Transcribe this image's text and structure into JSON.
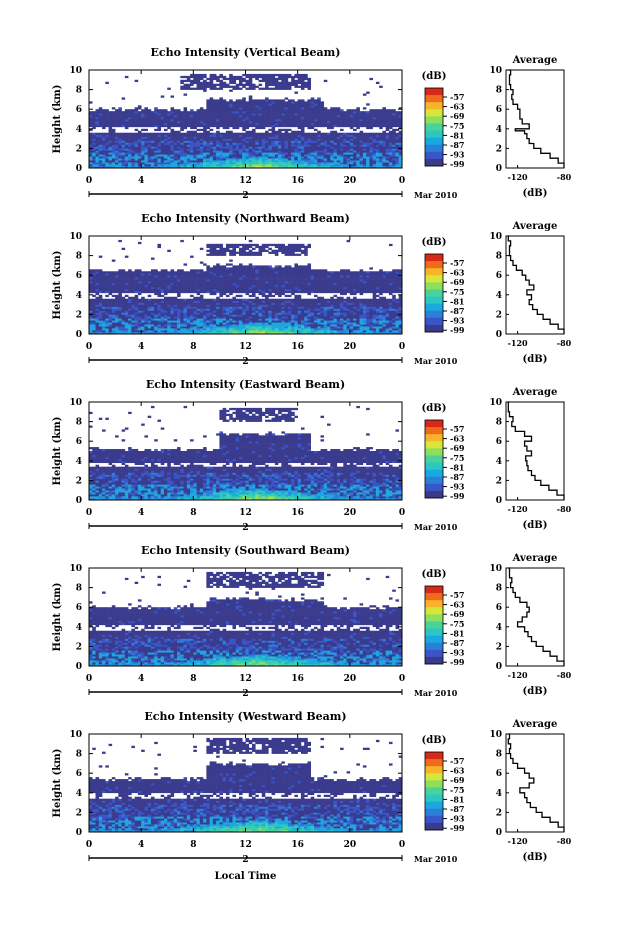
{
  "figure": {
    "xaxis_label": "Local Time",
    "date_label": "Mar 2010",
    "day_label": "2",
    "colorbar_unit": "(dB)",
    "colorbar_ticks": [
      "-57",
      "-63",
      "-69",
      "-75",
      "-81",
      "-87",
      "-93",
      "-99"
    ],
    "avg_title": "Average",
    "avg_xlabel": "(dB)",
    "avg_xticks": [
      "-120",
      "-80"
    ],
    "ylabel": "Height (km)",
    "xticks": [
      "0",
      "4",
      "8",
      "12",
      "16",
      "20",
      "0"
    ],
    "yticks": [
      "0",
      "2",
      "4",
      "6",
      "8",
      "10"
    ],
    "colors": [
      "#3b3b8e",
      "#3a55c8",
      "#2a7fd8",
      "#1aa8e0",
      "#2cc7c0",
      "#49d39a",
      "#8fdf5e",
      "#d8e63a",
      "#f7b42a",
      "#f06a1c",
      "#d62a18"
    ]
  },
  "chart_data": [
    {
      "type": "heatmap",
      "title": "Echo Intensity (Vertical Beam)",
      "x_range": [
        0,
        24
      ],
      "y_range": [
        0,
        10
      ],
      "color_range_db": [
        -99,
        -57
      ],
      "average_profile": {
        "height_km": [
          0,
          0.5,
          1,
          1.5,
          2,
          2.5,
          3,
          3.5,
          3.8,
          4,
          4.5,
          5,
          5.5,
          6,
          6.5,
          7,
          7.5,
          8,
          8.5,
          9,
          9.5,
          10
        ],
        "db": [
          -80,
          -85,
          -92,
          -100,
          -106,
          -110,
          -112,
          -114,
          -122,
          -110,
          -116,
          -118,
          -118,
          -120,
          -124,
          -125,
          -124,
          -126,
          -127,
          -127,
          -126,
          -128
        ]
      }
    },
    {
      "type": "heatmap",
      "title": "Echo Intensity (Northward Beam)",
      "x_range": [
        0,
        24
      ],
      "y_range": [
        0,
        10
      ],
      "color_range_db": [
        -99,
        -57
      ],
      "average_profile": {
        "height_km": [
          0,
          0.5,
          1,
          1.5,
          2,
          2.5,
          3,
          3.5,
          4,
          4.5,
          5,
          5.5,
          6,
          6.5,
          7,
          7.5,
          8,
          8.5,
          9,
          9.5,
          10
        ],
        "db": [
          -80,
          -85,
          -92,
          -98,
          -103,
          -107,
          -110,
          -108,
          -112,
          -106,
          -110,
          -113,
          -116,
          -121,
          -124,
          -126,
          -127,
          -127,
          -126,
          -128,
          -127
        ]
      }
    },
    {
      "type": "heatmap",
      "title": "Echo Intensity (Eastward Beam)",
      "x_range": [
        0,
        24
      ],
      "y_range": [
        0,
        10
      ],
      "color_range_db": [
        -99,
        -57
      ],
      "average_profile": {
        "height_km": [
          0,
          0.5,
          1,
          1.5,
          2,
          2.5,
          3,
          3.5,
          4,
          4.5,
          5,
          5.5,
          6,
          6.5,
          7,
          7.5,
          8,
          8.5,
          9,
          9.5,
          10
        ],
        "db": [
          -80,
          -86,
          -93,
          -100,
          -105,
          -108,
          -111,
          -112,
          -113,
          -108,
          -112,
          -114,
          -108,
          -114,
          -122,
          -125,
          -124,
          -127,
          -128,
          -128,
          -127
        ]
      }
    },
    {
      "type": "heatmap",
      "title": "Echo Intensity (Southward Beam)",
      "x_range": [
        0,
        24
      ],
      "y_range": [
        0,
        10
      ],
      "color_range_db": [
        -99,
        -57
      ],
      "average_profile": {
        "height_km": [
          0,
          0.5,
          1,
          1.5,
          2,
          2.5,
          3,
          3.5,
          4,
          4.5,
          5,
          5.5,
          6,
          6.5,
          7,
          7.5,
          8,
          8.5,
          9,
          9.5,
          10
        ],
        "db": [
          -80,
          -86,
          -92,
          -98,
          -104,
          -108,
          -111,
          -114,
          -120,
          -116,
          -112,
          -110,
          -112,
          -118,
          -122,
          -124,
          -126,
          -125,
          -127,
          -127,
          -128
        ]
      }
    },
    {
      "type": "heatmap",
      "title": "Echo Intensity (Westward Beam)",
      "x_range": [
        0,
        24
      ],
      "y_range": [
        0,
        10
      ],
      "color_range_db": [
        -99,
        -57
      ],
      "average_profile": {
        "height_km": [
          0,
          0.5,
          1,
          1.5,
          2,
          2.5,
          3,
          3.5,
          4,
          4.5,
          5,
          5.5,
          6,
          6.5,
          7,
          7.5,
          8,
          8.5,
          9,
          9.5,
          10
        ],
        "db": [
          -80,
          -85,
          -92,
          -99,
          -104,
          -109,
          -112,
          -114,
          -118,
          -110,
          -106,
          -110,
          -114,
          -120,
          -124,
          -126,
          -127,
          -126,
          -128,
          -127,
          -128
        ]
      }
    }
  ]
}
